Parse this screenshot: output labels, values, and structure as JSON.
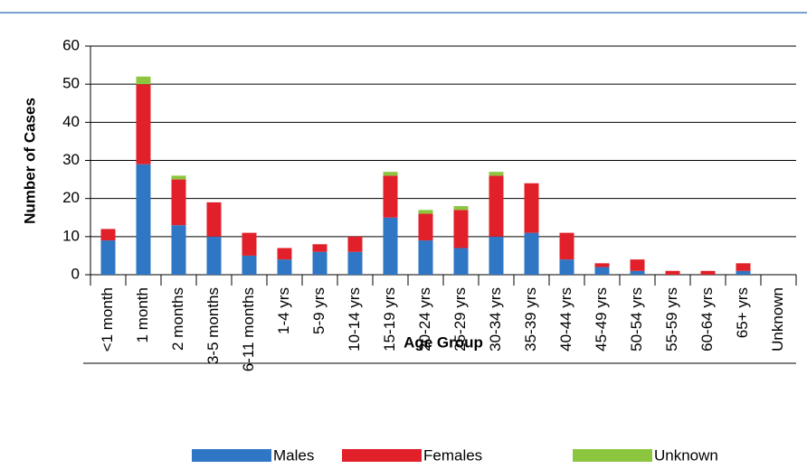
{
  "chart_data": {
    "type": "stacked_bar",
    "x_label": "Age Group",
    "y_label": "Number of Cases",
    "categories": [
      "<1 month",
      "1 month",
      "2 months",
      "3-5 months",
      "6-11 months",
      "1-4 yrs",
      "5-9 yrs",
      "10-14 yrs",
      "15-19 yrs",
      "20-24 yrs",
      "25-29 yrs",
      "30-34 yrs",
      "35-39 yrs",
      "40-44 yrs",
      "45-49 yrs",
      "50-54 yrs",
      "55-59 yrs",
      "60-64 yrs",
      "65+ yrs",
      "Unknown"
    ],
    "series": [
      {
        "name": "Males",
        "color": "#2f76c4",
        "values": [
          9,
          29,
          13,
          10,
          5,
          4,
          6,
          6,
          15,
          9,
          7,
          10,
          11,
          4,
          2,
          1,
          0,
          0,
          1,
          0
        ]
      },
      {
        "name": "Females",
        "color": "#e2202a",
        "values": [
          3,
          21,
          12,
          9,
          6,
          3,
          2,
          4,
          11,
          7,
          10,
          16,
          13,
          7,
          1,
          3,
          1,
          1,
          2,
          0
        ]
      },
      {
        "name": "Unknown",
        "color": "#8cc63f",
        "values": [
          0,
          2,
          1,
          0,
          0,
          0,
          0,
          0,
          1,
          1,
          1,
          1,
          0,
          0,
          0,
          0,
          0,
          0,
          0,
          0
        ]
      }
    ],
    "ylim": [
      0,
      60
    ],
    "yticks": [
      0,
      10,
      20,
      30,
      40,
      50,
      60
    ],
    "grid": true
  }
}
